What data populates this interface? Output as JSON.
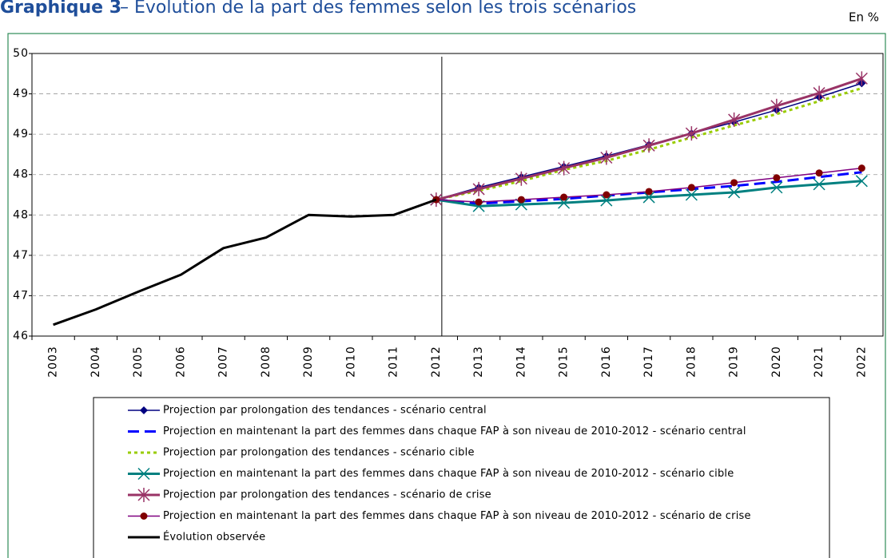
{
  "chart_data": {
    "type": "line",
    "title_label": "Graphique 3",
    "title": "– Évolution de la part des femmes selon les trois scénarios",
    "unit": "En %",
    "categories": [
      "2003",
      "2004",
      "2005",
      "2006",
      "2007",
      "2008",
      "2009",
      "2010",
      "2011",
      "2012",
      "2013",
      "2014",
      "2015",
      "2016",
      "2017",
      "2018",
      "2019",
      "2020",
      "2021",
      "2022"
    ],
    "ylim": [
      46,
      49.5
    ],
    "yticks": [
      46,
      {
        "value": 46.5,
        "label": "47"
      },
      47,
      {
        "value": 47.5,
        "label": "48"
      },
      48,
      {
        "value": 48.5,
        "label": "49"
      },
      49,
      {
        "value": 49.5,
        "label": "50"
      }
    ],
    "grid": true,
    "series": [
      {
        "name": "Projection par prolongation des tendances - scénario central",
        "color": "#000080",
        "width": 1.5,
        "marker": "diamond",
        "values": [
          null,
          null,
          null,
          null,
          null,
          null,
          null,
          null,
          null,
          47.69,
          47.84,
          47.97,
          48.1,
          48.23,
          48.37,
          48.51,
          48.65,
          48.8,
          48.96,
          49.13
        ]
      },
      {
        "name": "Projection en maintenant la part des femmes dans chaque FAP à son niveau de 2010-2012 - scénario central",
        "color": "#0000ff",
        "width": 3,
        "dash": "14,7",
        "values": [
          null,
          null,
          null,
          null,
          null,
          null,
          null,
          null,
          null,
          47.69,
          47.64,
          47.67,
          47.7,
          47.74,
          47.78,
          47.82,
          47.86,
          47.91,
          47.97,
          48.03
        ]
      },
      {
        "name": "Projection par prolongation des tendances - scénario cible",
        "color": "#99cc00",
        "width": 3,
        "dash": "4,4",
        "values": [
          null,
          null,
          null,
          null,
          null,
          null,
          null,
          null,
          null,
          47.69,
          47.8,
          47.92,
          48.06,
          48.17,
          48.31,
          48.46,
          48.61,
          48.75,
          48.91,
          49.07
        ]
      },
      {
        "name": "Projection en maintenant la part des femmes dans chaque FAP à son niveau de 2010-2012 - scénario cible",
        "color": "#008080",
        "width": 3,
        "marker": "x",
        "values": [
          null,
          null,
          null,
          null,
          null,
          null,
          null,
          null,
          null,
          47.69,
          47.61,
          47.63,
          47.65,
          47.68,
          47.72,
          47.75,
          47.78,
          47.84,
          47.88,
          47.92
        ]
      },
      {
        "name": "Projection par prolongation des tendances - scénario de crise",
        "color": "#993366",
        "width": 3,
        "marker": "star",
        "values": [
          null,
          null,
          null,
          null,
          null,
          null,
          null,
          null,
          null,
          47.69,
          47.82,
          47.95,
          48.08,
          48.21,
          48.36,
          48.51,
          48.68,
          48.85,
          49.01,
          49.19
        ]
      },
      {
        "name": "Projection en maintenant la part des femmes dans chaque FAP à son niveau de 2010-2012 - scénario de crise",
        "color": "#800080",
        "marker_color": "#800000",
        "width": 1.5,
        "marker": "circle",
        "values": [
          null,
          null,
          null,
          null,
          null,
          null,
          null,
          null,
          null,
          47.69,
          47.66,
          47.69,
          47.72,
          47.75,
          47.79,
          47.84,
          47.9,
          47.96,
          48.02,
          48.08
        ]
      },
      {
        "name": "Évolution observée",
        "color": "#000000",
        "width": 3,
        "values": [
          46.14,
          46.33,
          46.55,
          46.76,
          47.09,
          47.22,
          47.5,
          47.48,
          47.5,
          47.69,
          null,
          null,
          null,
          null,
          null,
          null,
          null,
          null,
          null,
          null
        ]
      }
    ]
  }
}
